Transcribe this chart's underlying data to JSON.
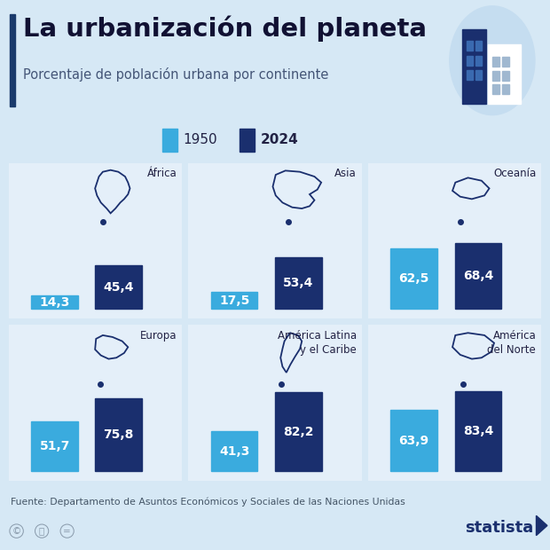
{
  "title": "La urbanización del planeta",
  "subtitle": "Porcentaje de población urbana por continente",
  "title_bar_color": "#1a3a6b",
  "bg_color": "#d6e8f5",
  "panel_color": "#e4eff9",
  "bar_color_1950": "#3aabde",
  "bar_color_2024": "#1a2f6e",
  "label_1950": "1950",
  "label_2024": "2024",
  "source": "Fuente: Departamento de Asuntos Económicos y Sociales de las Naciones Unidas",
  "continents": [
    {
      "name": "África",
      "val1950": 14.3,
      "val2024": 45.4
    },
    {
      "name": "Asia",
      "val1950": 17.5,
      "val2024": 53.4
    },
    {
      "name": "Oceanía",
      "val1950": 62.5,
      "val2024": 68.4
    },
    {
      "name": "Europa",
      "val1950": 51.7,
      "val2024": 75.8
    },
    {
      "name": "América Latina\ny el Caribe",
      "val1950": 41.3,
      "val2024": 82.2
    },
    {
      "name": "América\ndel Norte",
      "val1950": 63.9,
      "val2024": 83.4
    }
  ]
}
